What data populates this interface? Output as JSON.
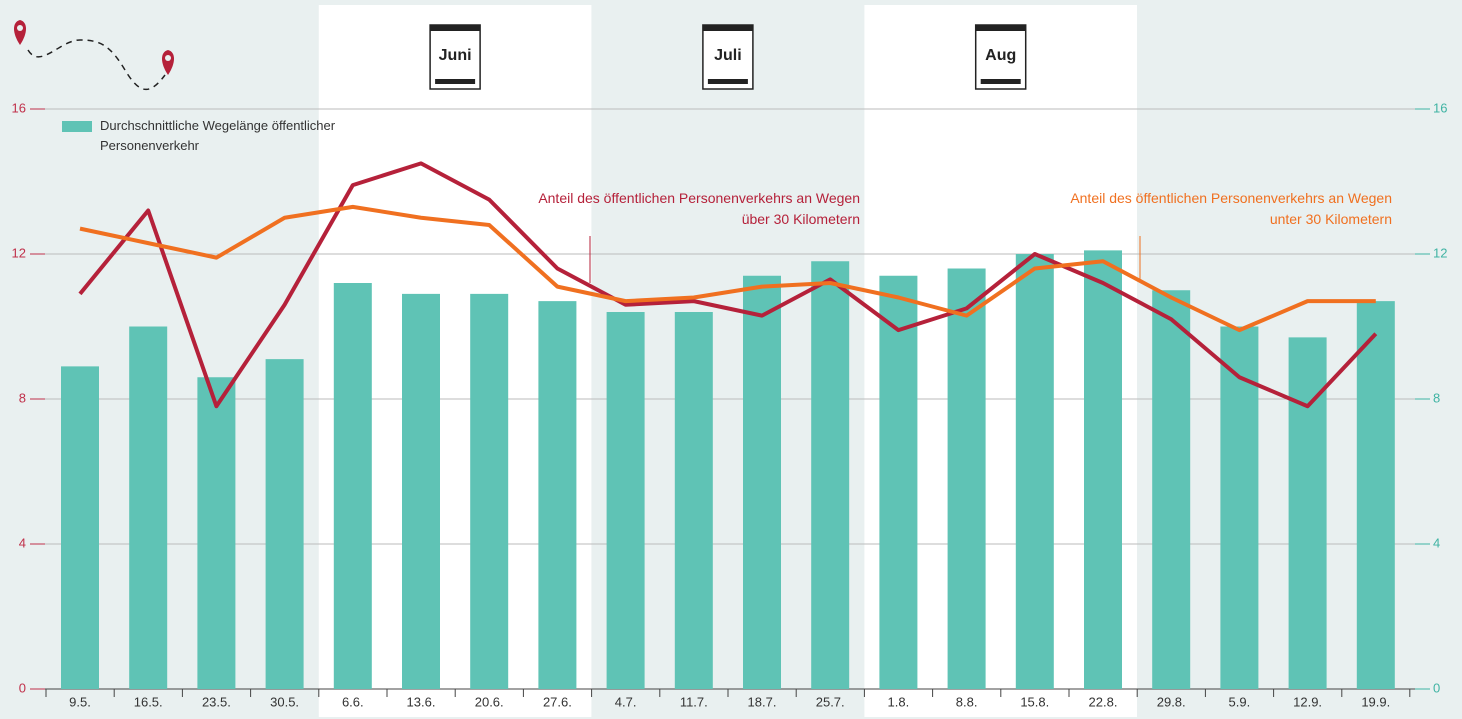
{
  "chart_data": {
    "type": "bar-line",
    "categories": [
      "9.5.",
      "16.5.",
      "23.5.",
      "30.5.",
      "6.6.",
      "13.6.",
      "20.6.",
      "27.6.",
      "4.7.",
      "11.7.",
      "18.7.",
      "25.7.",
      "1.8.",
      "8.8.",
      "15.8.",
      "22.8.",
      "29.8.",
      "5.9.",
      "12.9.",
      "19.9."
    ],
    "months": [
      "Juni",
      "Juli",
      "Aug"
    ],
    "series": [
      {
        "name": "Durchschnittliche Wegelänge öffentlicher Personenverkehr",
        "type": "bar",
        "axis": "y2",
        "color": "#5fc3b5",
        "values": [
          8.9,
          10.0,
          8.6,
          9.1,
          11.2,
          10.9,
          10.9,
          10.7,
          10.4,
          10.4,
          11.4,
          11.8,
          11.4,
          11.6,
          12.0,
          12.1,
          11.0,
          10.0,
          9.7,
          10.7
        ]
      },
      {
        "name": "Anteil des öffentlichen Personenverkehrs an Wegen über 30 Kilometern",
        "type": "line",
        "color": "#b5213a",
        "values": [
          10.9,
          13.2,
          7.8,
          10.6,
          13.9,
          14.5,
          13.5,
          11.6,
          10.6,
          10.7,
          10.3,
          11.3,
          9.9,
          10.5,
          12.0,
          11.2,
          10.2,
          8.6,
          7.8,
          9.8
        ]
      },
      {
        "name": "Anteil des öffentlichen Personenverkehrs an Wegen unter 30 Kilometern",
        "type": "line",
        "color": "#f07020",
        "values": [
          12.7,
          12.3,
          11.9,
          13.0,
          13.3,
          13.0,
          12.8,
          11.1,
          10.7,
          10.8,
          11.1,
          11.2,
          10.8,
          10.3,
          11.6,
          11.8,
          10.8,
          9.9,
          10.7,
          10.7
        ]
      }
    ],
    "ylim": [
      0,
      16
    ],
    "yticks": [
      0,
      4,
      8,
      12,
      16
    ],
    "y2lim": [
      0,
      16
    ],
    "y2ticks": [
      0,
      4,
      8,
      12,
      16
    ],
    "ycolor": "#c0304a",
    "y2color": "#3fb3a3",
    "grid": true
  }
}
